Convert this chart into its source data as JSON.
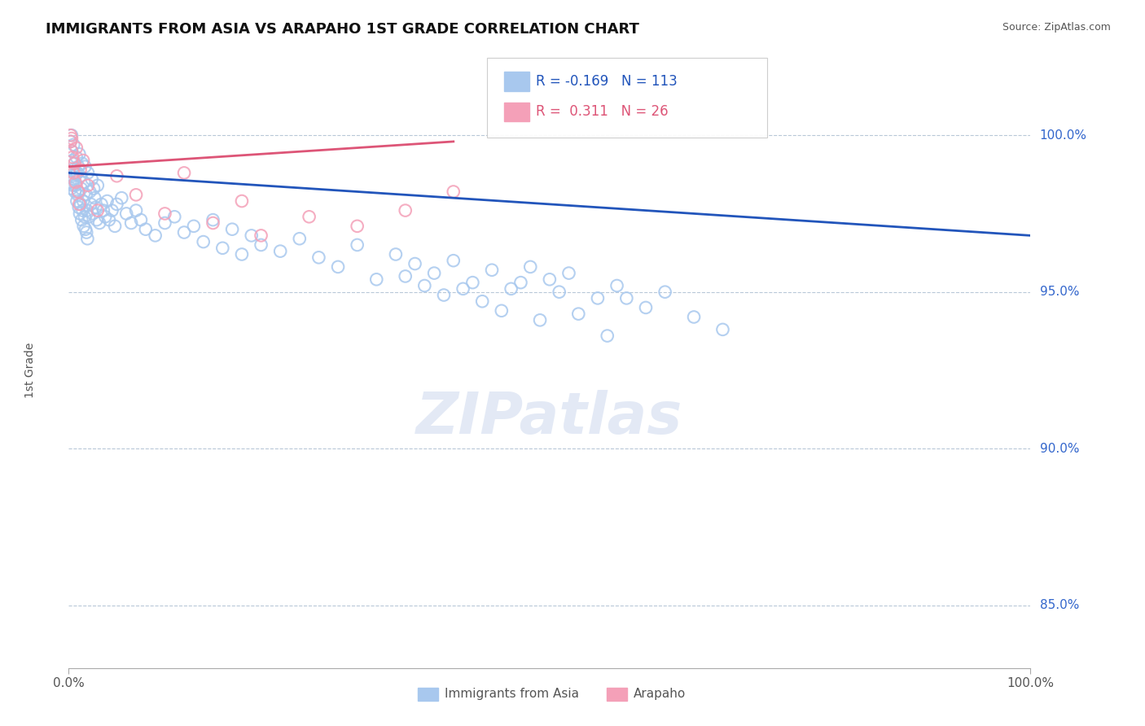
{
  "title": "IMMIGRANTS FROM ASIA VS ARAPAHO 1ST GRADE CORRELATION CHART",
  "source_text": "Source: ZipAtlas.com",
  "ylabel": "1st Grade",
  "ytick_labels": [
    "100.0%",
    "95.0%",
    "90.0%",
    "85.0%"
  ],
  "ytick_values": [
    100.0,
    95.0,
    90.0,
    85.0
  ],
  "ylim": [
    83.0,
    102.0
  ],
  "xlim": [
    0.0,
    100.0
  ],
  "blue_R": -0.169,
  "blue_N": 113,
  "pink_R": 0.311,
  "pink_N": 26,
  "blue_color": "#a8c8ee",
  "pink_color": "#f4a0b8",
  "blue_line_color": "#2255bb",
  "pink_line_color": "#dd5577",
  "legend_label_blue": "Immigrants from Asia",
  "legend_label_pink": "Arapaho",
  "watermark": "ZIPatlas",
  "blue_trend_x0": 0.0,
  "blue_trend_y0": 98.8,
  "blue_trend_x1": 100.0,
  "blue_trend_y1": 96.8,
  "pink_trend_x0": 0.0,
  "pink_trend_y0": 99.0,
  "pink_trend_x1": 40.0,
  "pink_trend_y1": 99.8,
  "blue_scatter_x": [
    0.2,
    0.3,
    0.3,
    0.4,
    0.4,
    0.5,
    0.5,
    0.6,
    0.7,
    0.8,
    0.9,
    1.0,
    1.0,
    1.1,
    1.2,
    1.3,
    1.4,
    1.5,
    1.6,
    1.7,
    1.8,
    1.9,
    2.0,
    2.1,
    2.2,
    2.3,
    2.4,
    2.5,
    2.6,
    2.7,
    2.8,
    2.9,
    3.0,
    3.2,
    3.4,
    3.6,
    3.8,
    4.0,
    4.2,
    4.5,
    4.8,
    5.0,
    5.5,
    6.0,
    6.5,
    7.0,
    7.5,
    8.0,
    9.0,
    10.0,
    11.0,
    12.0,
    13.0,
    14.0,
    15.0,
    16.0,
    17.0,
    18.0,
    19.0,
    20.0,
    22.0,
    24.0,
    26.0,
    28.0,
    30.0,
    32.0,
    34.0,
    36.0,
    38.0,
    40.0,
    42.0,
    44.0,
    46.0,
    48.0,
    50.0,
    52.0,
    55.0,
    57.0,
    60.0,
    62.0,
    65.0,
    68.0,
    35.0,
    37.0,
    39.0,
    41.0,
    43.0,
    45.0,
    47.0,
    49.0,
    51.0,
    53.0,
    56.0,
    58.0,
    0.15,
    0.25,
    0.35,
    0.45,
    0.55,
    0.65,
    0.75,
    0.85,
    0.95,
    1.05,
    1.15,
    1.25,
    1.35,
    1.45,
    1.55,
    1.65,
    1.75,
    1.85,
    1.95
  ],
  "blue_scatter_y": [
    99.8,
    99.5,
    100.0,
    98.9,
    99.2,
    98.6,
    99.7,
    99.1,
    98.4,
    99.3,
    98.8,
    99.0,
    98.2,
    99.4,
    98.7,
    98.3,
    99.1,
    97.9,
    98.5,
    99.0,
    98.1,
    97.6,
    98.8,
    97.4,
    98.2,
    97.8,
    98.6,
    97.5,
    98.3,
    98.0,
    97.7,
    97.3,
    98.4,
    97.2,
    97.8,
    97.6,
    97.4,
    97.9,
    97.3,
    97.6,
    97.1,
    97.8,
    98.0,
    97.5,
    97.2,
    97.6,
    97.3,
    97.0,
    96.8,
    97.2,
    97.4,
    96.9,
    97.1,
    96.6,
    97.3,
    96.4,
    97.0,
    96.2,
    96.8,
    96.5,
    96.3,
    96.7,
    96.1,
    95.8,
    96.5,
    95.4,
    96.2,
    95.9,
    95.6,
    96.0,
    95.3,
    95.7,
    95.1,
    95.8,
    95.4,
    95.6,
    94.8,
    95.2,
    94.5,
    95.0,
    94.2,
    93.8,
    95.5,
    95.2,
    94.9,
    95.1,
    94.7,
    94.4,
    95.3,
    94.1,
    95.0,
    94.3,
    93.6,
    94.8,
    98.5,
    98.3,
    98.7,
    98.4,
    98.6,
    98.2,
    98.8,
    97.9,
    98.1,
    97.7,
    97.5,
    97.8,
    97.3,
    97.6,
    97.1,
    97.4,
    97.0,
    96.9,
    96.7
  ],
  "pink_scatter_x": [
    0.2,
    0.2,
    0.3,
    0.3,
    0.4,
    0.5,
    0.6,
    0.7,
    0.8,
    1.0,
    1.1,
    1.2,
    1.5,
    2.0,
    3.0,
    5.0,
    7.0,
    10.0,
    12.0,
    15.0,
    18.0,
    20.0,
    25.0,
    30.0,
    35.0,
    40.0
  ],
  "pink_scatter_y": [
    99.8,
    100.0,
    99.5,
    99.9,
    99.3,
    98.8,
    99.1,
    98.5,
    99.6,
    98.2,
    97.8,
    98.9,
    99.2,
    98.4,
    97.6,
    98.7,
    98.1,
    97.5,
    98.8,
    97.2,
    97.9,
    96.8,
    97.4,
    97.1,
    97.6,
    98.2
  ]
}
